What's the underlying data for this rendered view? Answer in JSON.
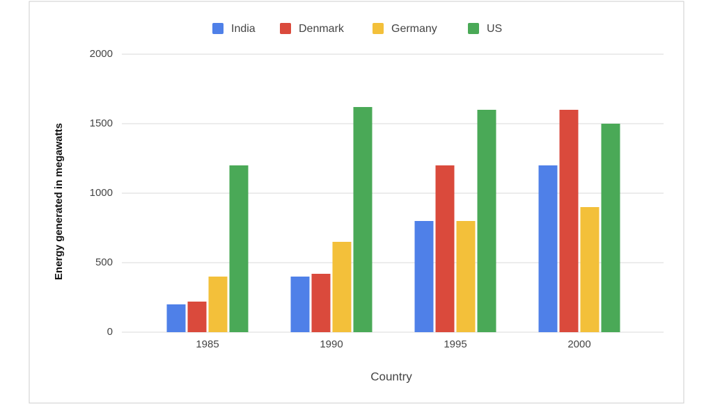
{
  "chart_data": {
    "type": "bar",
    "x_label": "Country",
    "y_label": "Energy generated in megawatts",
    "categories": [
      "1985",
      "1990",
      "1995",
      "2000"
    ],
    "series": [
      {
        "name": "India",
        "color": "#4f80e8",
        "values": [
          200,
          400,
          800,
          1200
        ]
      },
      {
        "name": "Denmark",
        "color": "#da4a3c",
        "values": [
          220,
          420,
          1200,
          1600
        ]
      },
      {
        "name": "Germany",
        "color": "#f3c03a",
        "values": [
          400,
          650,
          800,
          900
        ]
      },
      {
        "name": "US",
        "color": "#4aa957",
        "values": [
          1200,
          1620,
          1600,
          1500
        ]
      }
    ],
    "ylim": [
      0,
      2000
    ],
    "yticks": [
      0,
      500,
      1000,
      1500,
      2000
    ],
    "grid": true,
    "legend": "top"
  }
}
